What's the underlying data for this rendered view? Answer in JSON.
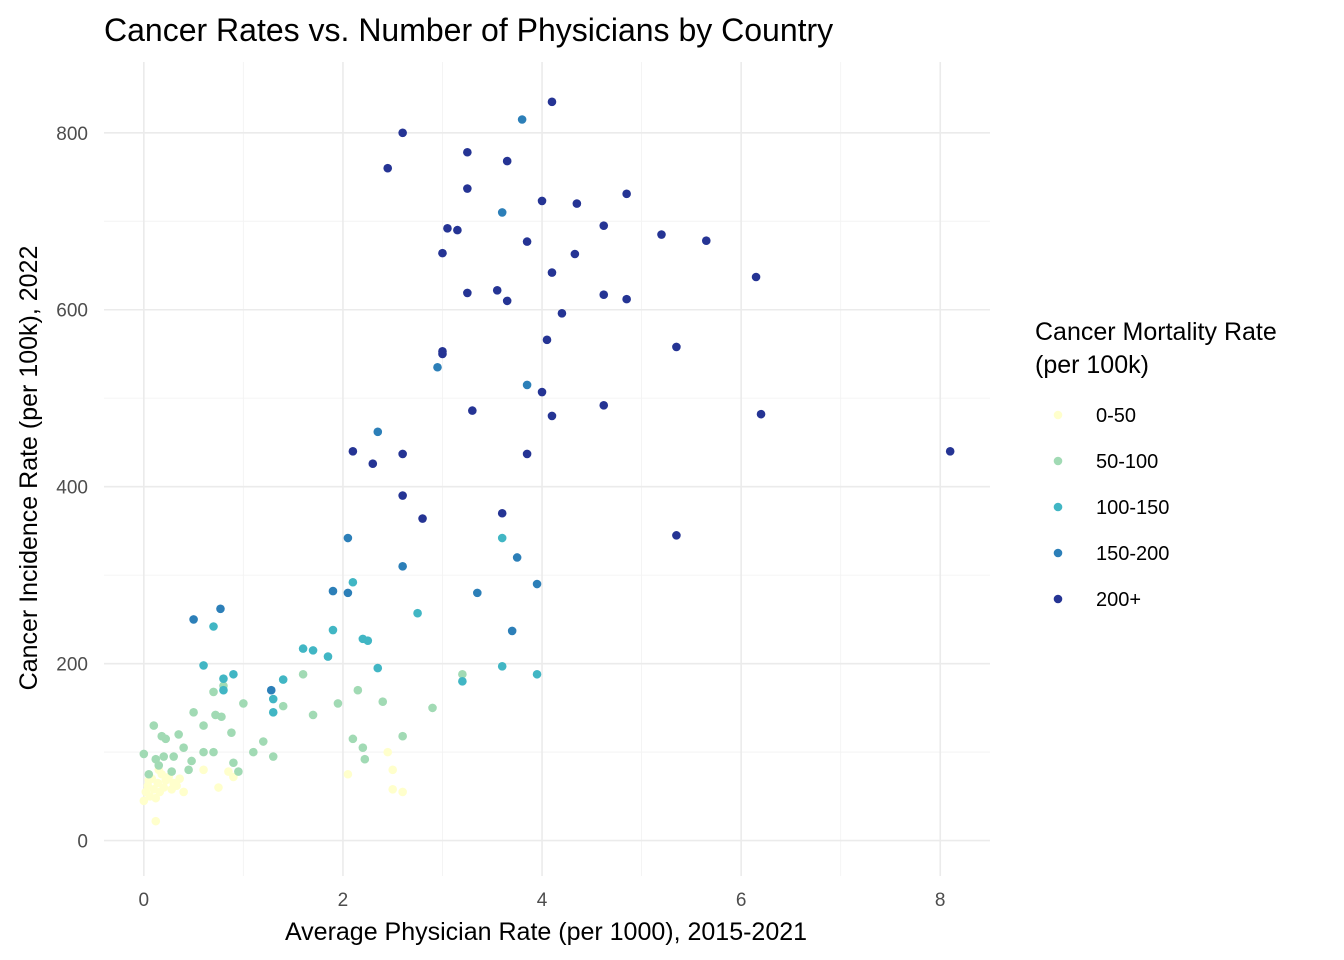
{
  "chart_data": {
    "type": "scatter",
    "title": "Cancer Rates vs. Number of Physicians by Country",
    "xlabel": "Average Physician Rate (per 1000), 2015-2021",
    "ylabel": "Cancer Incidence Rate (per 100k), 2022",
    "xlim": [
      -0.4,
      8.5
    ],
    "ylim": [
      -40,
      880
    ],
    "x_ticks": [
      0,
      2,
      4,
      6,
      8
    ],
    "y_ticks": [
      0,
      200,
      400,
      600,
      800
    ],
    "grid": true,
    "legend": {
      "title_lines": [
        "Cancer Mortality Rate",
        "(per 100k)"
      ],
      "position": "right"
    },
    "series": [
      {
        "name": "0-50",
        "color": "#ffffcc",
        "points": [
          [
            0.0,
            45
          ],
          [
            0.02,
            55
          ],
          [
            0.04,
            62
          ],
          [
            0.06,
            50
          ],
          [
            0.08,
            70
          ],
          [
            0.1,
            58
          ],
          [
            0.12,
            48
          ],
          [
            0.12,
            22
          ],
          [
            0.14,
            65
          ],
          [
            0.16,
            55
          ],
          [
            0.18,
            75
          ],
          [
            0.2,
            60
          ],
          [
            0.22,
            68
          ],
          [
            0.25,
            72
          ],
          [
            0.28,
            58
          ],
          [
            0.3,
            65
          ],
          [
            0.33,
            62
          ],
          [
            0.36,
            70
          ],
          [
            0.4,
            55
          ],
          [
            0.05,
            68
          ],
          [
            0.15,
            80
          ],
          [
            0.6,
            80
          ],
          [
            0.75,
            60
          ],
          [
            0.85,
            78
          ],
          [
            0.9,
            72
          ],
          [
            2.05,
            75
          ],
          [
            2.45,
            100
          ],
          [
            2.5,
            80
          ],
          [
            2.5,
            58
          ],
          [
            2.6,
            55
          ]
        ]
      },
      {
        "name": "50-100",
        "color": "#a1dab4",
        "points": [
          [
            0.0,
            98
          ],
          [
            0.05,
            75
          ],
          [
            0.1,
            130
          ],
          [
            0.12,
            92
          ],
          [
            0.15,
            85
          ],
          [
            0.18,
            118
          ],
          [
            0.2,
            95
          ],
          [
            0.22,
            115
          ],
          [
            0.28,
            78
          ],
          [
            0.3,
            95
          ],
          [
            0.35,
            120
          ],
          [
            0.4,
            105
          ],
          [
            0.45,
            80
          ],
          [
            0.48,
            90
          ],
          [
            0.5,
            145
          ],
          [
            0.6,
            130
          ],
          [
            0.6,
            100
          ],
          [
            0.7,
            168
          ],
          [
            0.7,
            100
          ],
          [
            0.72,
            142
          ],
          [
            0.78,
            140
          ],
          [
            0.8,
            175
          ],
          [
            0.88,
            122
          ],
          [
            0.9,
            88
          ],
          [
            0.95,
            78
          ],
          [
            1.0,
            155
          ],
          [
            1.1,
            100
          ],
          [
            1.2,
            112
          ],
          [
            1.3,
            95
          ],
          [
            1.4,
            152
          ],
          [
            1.6,
            188
          ],
          [
            1.7,
            142
          ],
          [
            1.95,
            155
          ],
          [
            2.1,
            115
          ],
          [
            2.15,
            170
          ],
          [
            2.2,
            105
          ],
          [
            2.22,
            92
          ],
          [
            2.4,
            157
          ],
          [
            2.6,
            118
          ],
          [
            2.9,
            150
          ],
          [
            3.2,
            188
          ]
        ]
      },
      {
        "name": "100-150",
        "color": "#41b6c4",
        "points": [
          [
            0.6,
            198
          ],
          [
            0.7,
            242
          ],
          [
            0.8,
            183
          ],
          [
            0.8,
            170
          ],
          [
            0.9,
            188
          ],
          [
            1.3,
            145
          ],
          [
            1.3,
            160
          ],
          [
            1.4,
            182
          ],
          [
            1.6,
            217
          ],
          [
            1.7,
            215
          ],
          [
            1.85,
            208
          ],
          [
            1.9,
            238
          ],
          [
            2.1,
            292
          ],
          [
            2.2,
            228
          ],
          [
            2.25,
            226
          ],
          [
            2.35,
            195
          ],
          [
            2.75,
            257
          ],
          [
            3.2,
            180
          ],
          [
            3.6,
            342
          ],
          [
            3.6,
            197
          ],
          [
            3.95,
            188
          ]
        ]
      },
      {
        "name": "150-200",
        "color": "#2c7fb8",
        "points": [
          [
            0.5,
            250
          ],
          [
            0.77,
            262
          ],
          [
            1.28,
            170
          ],
          [
            1.9,
            282
          ],
          [
            2.05,
            342
          ],
          [
            2.05,
            280
          ],
          [
            2.35,
            462
          ],
          [
            2.6,
            310
          ],
          [
            2.95,
            535
          ],
          [
            3.35,
            280
          ],
          [
            3.6,
            710
          ],
          [
            3.75,
            320
          ],
          [
            3.8,
            815
          ],
          [
            3.85,
            515
          ],
          [
            3.7,
            237
          ],
          [
            3.95,
            290
          ]
        ]
      },
      {
        "name": "200+",
        "color": "#253494",
        "points": [
          [
            2.1,
            440
          ],
          [
            2.3,
            426
          ],
          [
            2.45,
            760
          ],
          [
            2.6,
            800
          ],
          [
            2.6,
            437
          ],
          [
            2.6,
            390
          ],
          [
            2.8,
            364
          ],
          [
            3.0,
            664
          ],
          [
            3.0,
            550
          ],
          [
            3.0,
            553
          ],
          [
            3.05,
            692
          ],
          [
            3.15,
            690
          ],
          [
            3.25,
            778
          ],
          [
            3.25,
            737
          ],
          [
            3.25,
            619
          ],
          [
            3.3,
            486
          ],
          [
            3.55,
            622
          ],
          [
            3.6,
            370
          ],
          [
            3.65,
            768
          ],
          [
            3.65,
            610
          ],
          [
            3.85,
            677
          ],
          [
            3.85,
            437
          ],
          [
            4.0,
            723
          ],
          [
            4.0,
            507
          ],
          [
            4.05,
            566
          ],
          [
            4.1,
            835
          ],
          [
            4.1,
            642
          ],
          [
            4.1,
            480
          ],
          [
            4.2,
            596
          ],
          [
            4.33,
            663
          ],
          [
            4.35,
            720
          ],
          [
            4.62,
            695
          ],
          [
            4.62,
            617
          ],
          [
            4.62,
            492
          ],
          [
            4.85,
            731
          ],
          [
            4.85,
            612
          ],
          [
            5.2,
            685
          ],
          [
            5.35,
            558
          ],
          [
            5.35,
            345
          ],
          [
            5.65,
            678
          ],
          [
            6.15,
            637
          ],
          [
            6.2,
            482
          ],
          [
            8.1,
            440
          ]
        ]
      }
    ]
  }
}
